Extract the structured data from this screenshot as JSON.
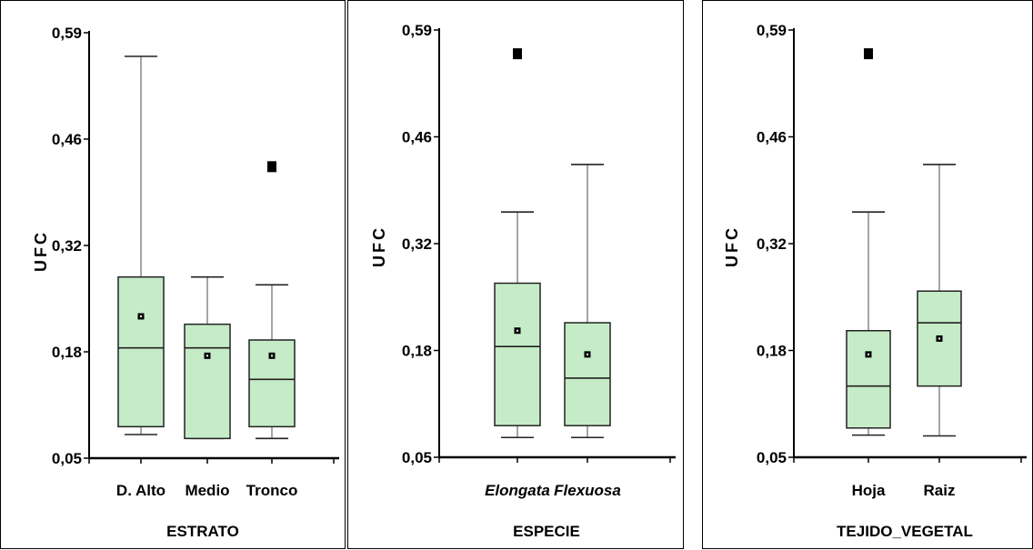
{
  "chart_data": [
    {
      "type": "box",
      "xlabel": "ESTRATO",
      "ylabel": "UFC",
      "ylim": [
        0.05,
        0.59
      ],
      "yticks": [
        "0,05",
        "0,18",
        "0,32",
        "0,46",
        "0,59"
      ],
      "categories": [
        "D. Alto",
        "Medio",
        "Tronco"
      ],
      "italic_categories": false,
      "boxes": [
        {
          "whisker_low": 0.08,
          "q1": 0.09,
          "median": 0.19,
          "q3": 0.28,
          "whisker_high": 0.56,
          "mean": 0.23,
          "outliers": []
        },
        {
          "whisker_low": 0.075,
          "q1": 0.075,
          "median": 0.19,
          "q3": 0.22,
          "whisker_high": 0.28,
          "mean": 0.18,
          "outliers": []
        },
        {
          "whisker_low": 0.075,
          "q1": 0.09,
          "median": 0.15,
          "q3": 0.2,
          "whisker_high": 0.27,
          "mean": 0.18,
          "outliers": [
            0.42
          ]
        }
      ]
    },
    {
      "type": "box",
      "xlabel": "ESPECIE",
      "ylabel": "UFC",
      "ylim": [
        0.05,
        0.59
      ],
      "yticks": [
        "0,05",
        "0,18",
        "0,32",
        "0,46",
        "0,59"
      ],
      "categories": [
        "Elongata",
        "Flexuosa"
      ],
      "italic_categories": true,
      "boxes": [
        {
          "whisker_low": 0.075,
          "q1": 0.09,
          "median": 0.19,
          "q3": 0.27,
          "whisker_high": 0.36,
          "mean": 0.21,
          "outliers": [
            0.56
          ]
        },
        {
          "whisker_low": 0.075,
          "q1": 0.09,
          "median": 0.15,
          "q3": 0.22,
          "whisker_high": 0.42,
          "mean": 0.18,
          "outliers": []
        }
      ]
    },
    {
      "type": "box",
      "xlabel": "TEJIDO_VEGETAL",
      "ylabel": "UFC",
      "ylim": [
        0.05,
        0.59
      ],
      "yticks": [
        "0,05",
        "0,18",
        "0,32",
        "0,46",
        "0,59"
      ],
      "categories": [
        "Hoja",
        "Raiz"
      ],
      "italic_categories": false,
      "boxes": [
        {
          "whisker_low": 0.078,
          "q1": 0.087,
          "median": 0.14,
          "q3": 0.21,
          "whisker_high": 0.36,
          "mean": 0.18,
          "outliers": [
            0.56
          ]
        },
        {
          "whisker_low": 0.077,
          "q1": 0.14,
          "median": 0.22,
          "q3": 0.26,
          "whisker_high": 0.42,
          "mean": 0.2,
          "outliers": []
        }
      ]
    }
  ]
}
